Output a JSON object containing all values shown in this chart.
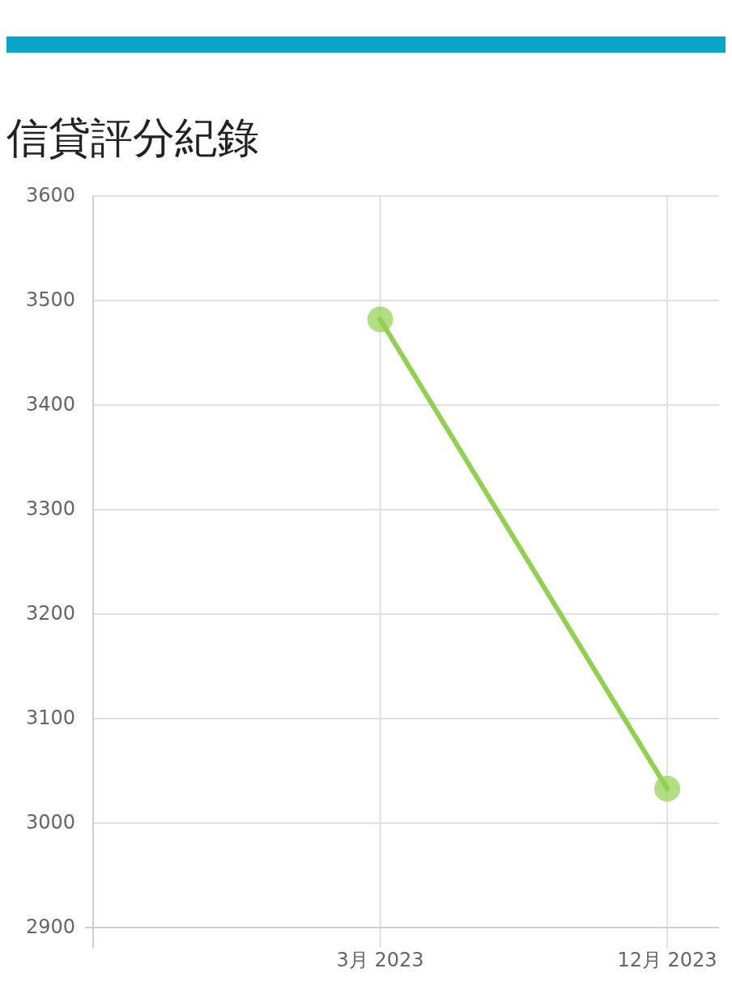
{
  "chart_data": {
    "type": "line",
    "title": "信貸評分紀錄",
    "categories": [
      null,
      "3月 2023",
      "12月 2023"
    ],
    "series": [
      {
        "color": "#92d050",
        "values": [
          null,
          3482,
          3033
        ]
      }
    ],
    "ylim": [
      2900,
      3600
    ],
    "yticks": [
      2900,
      3000,
      3100,
      3200,
      3300,
      3400,
      3500,
      3600
    ],
    "grid": true,
    "marker": "circle",
    "line_style": "solid"
  }
}
